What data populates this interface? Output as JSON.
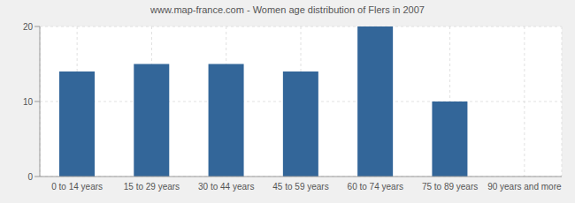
{
  "chart_data": {
    "type": "bar",
    "title": "www.map-france.com - Women age distribution of Flers in 2007",
    "categories": [
      "0 to 14 years",
      "15 to 29 years",
      "30 to 44 years",
      "45 to 59 years",
      "60 to 74 years",
      "75 to 89 years",
      "90 years and more"
    ],
    "values": [
      14,
      15,
      15,
      14,
      20,
      10,
      0
    ],
    "color": "#336699",
    "ylim": [
      0,
      20
    ],
    "yticks": [
      0,
      10,
      20
    ],
    "grid": true
  }
}
